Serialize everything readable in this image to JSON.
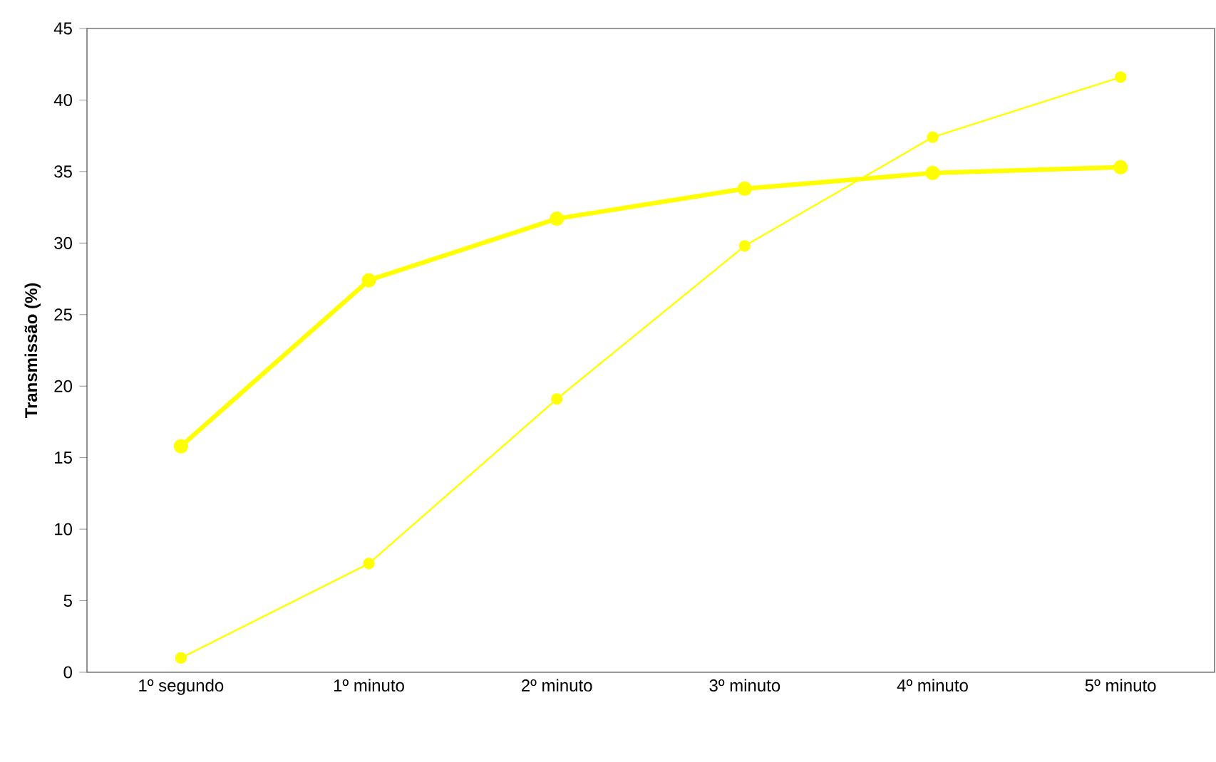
{
  "chart_data": {
    "type": "line",
    "ylabel": "Transmissão (%)",
    "categories": [
      "1º segundo",
      "1º minuto",
      "2º minuto",
      "3º minuto",
      "4º minuto",
      "5º minuto"
    ],
    "series": [
      {
        "color": "#ffff00",
        "values": [
          1.0,
          7.6,
          19.1,
          29.8,
          37.4,
          41.6
        ]
      },
      {
        "color": "#ffff00",
        "values": [
          15.8,
          27.4,
          31.7,
          33.8,
          34.9,
          35.3
        ]
      }
    ],
    "ylim": [
      0,
      45
    ],
    "yticks": [
      0,
      5,
      10,
      15,
      20,
      25,
      30,
      35,
      40,
      45
    ],
    "grid": false,
    "legend": false,
    "marker": "circle",
    "line_style": "solid"
  }
}
